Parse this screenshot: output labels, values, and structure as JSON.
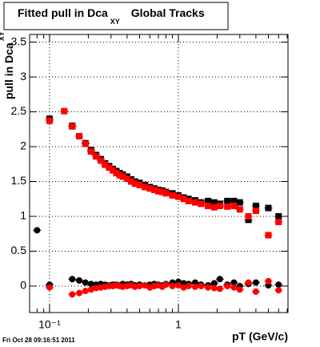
{
  "chart_data": {
    "type": "scatter",
    "title": "Fitted pull in Dca",
    "title_subscript": "XY",
    "title_suffix": "Global Tracks",
    "y_label": "pull in Dca",
    "y_label_subscript": "XY",
    "x_label": "pT (GeV/c)",
    "footer": "Fri Oct 28 09:16:51 2011",
    "log_x": true,
    "grid": true,
    "xlim": [
      0.07,
      7.1
    ],
    "ylim": [
      -0.38,
      3.61
    ],
    "xticks": [
      {
        "value": 0.1,
        "label": "10⁻¹"
      },
      1
    ],
    "xminorticks": [
      0.08,
      0.09,
      0.2,
      0.3,
      0.4,
      0.5,
      0.6,
      0.7,
      0.8,
      0.9,
      2,
      3,
      4,
      5,
      6,
      7
    ],
    "yticks": [
      0,
      0.5,
      1,
      1.5,
      2,
      2.5,
      3,
      3.5
    ],
    "x": [
      0.08,
      0.1,
      0.13,
      0.15,
      0.17,
      0.19,
      0.21,
      0.23,
      0.25,
      0.27,
      0.29,
      0.31,
      0.33,
      0.35,
      0.37,
      0.4,
      0.43,
      0.46,
      0.5,
      0.55,
      0.6,
      0.65,
      0.7,
      0.75,
      0.8,
      0.9,
      1.0,
      1.1,
      1.2,
      1.35,
      1.5,
      1.7,
      1.9,
      2.1,
      2.4,
      2.7,
      3.0,
      3.5,
      4.0,
      5.0,
      6.0
    ],
    "series": [
      {
        "color": "#000000",
        "marker": "square",
        "values": [
          null,
          2.4,
          null,
          2.3,
          2.15,
          2.05,
          1.95,
          1.88,
          1.82,
          1.76,
          1.72,
          1.68,
          1.65,
          1.62,
          1.6,
          1.57,
          1.53,
          1.5,
          1.48,
          1.45,
          1.42,
          1.4,
          1.38,
          1.37,
          1.35,
          1.33,
          1.3,
          1.27,
          1.25,
          1.23,
          1.2,
          1.22,
          1.2,
          1.18,
          1.22,
          1.22,
          1.2,
          0.95,
          1.15,
          1.12,
          1.0
        ]
      },
      {
        "color": "#000000",
        "marker": "circle",
        "values": [
          0.8,
          0.02,
          null,
          0.1,
          0.08,
          0.05,
          0.03,
          0.02,
          0.03,
          0.02,
          0.01,
          0.02,
          0.02,
          0.01,
          0.03,
          0.02,
          0.03,
          0.01,
          0.02,
          0.01,
          0.02,
          0.03,
          0.02,
          0.01,
          0.03,
          0.05,
          0.06,
          0.04,
          0.03,
          0.05,
          0.02,
          0.01,
          0.04,
          0.1,
          0.02,
          0.05,
          0.0,
          0.03,
          0.05,
          0.01,
          0.02
        ]
      },
      {
        "color": "#ff0000",
        "marker": "square",
        "values": [
          null,
          2.37,
          2.51,
          2.29,
          2.15,
          2.04,
          1.93,
          1.86,
          1.8,
          1.74,
          1.7,
          1.66,
          1.62,
          1.59,
          1.57,
          1.54,
          1.5,
          1.47,
          1.45,
          1.42,
          1.4,
          1.38,
          1.36,
          1.35,
          1.33,
          1.3,
          1.28,
          1.25,
          1.22,
          1.2,
          1.18,
          1.15,
          1.13,
          1.15,
          1.14,
          1.15,
          1.1,
          1.0,
          1.08,
          0.73,
          0.92
        ]
      },
      {
        "color": "#ff0000",
        "marker": "circle",
        "values": [
          null,
          -0.02,
          null,
          -0.12,
          -0.1,
          -0.07,
          -0.05,
          -0.03,
          -0.02,
          -0.01,
          0.0,
          0.0,
          0.01,
          0.0,
          -0.01,
          0.0,
          0.01,
          -0.01,
          0.0,
          0.01,
          -0.02,
          0.0,
          0.01,
          -0.01,
          0.02,
          0.0,
          0.01,
          -0.02,
          0.0,
          -0.01,
          0.0,
          -0.02,
          -0.03,
          -0.04,
          0.0,
          -0.02,
          -0.05,
          0.05,
          -0.08,
          0.07,
          -0.06
        ]
      }
    ]
  }
}
